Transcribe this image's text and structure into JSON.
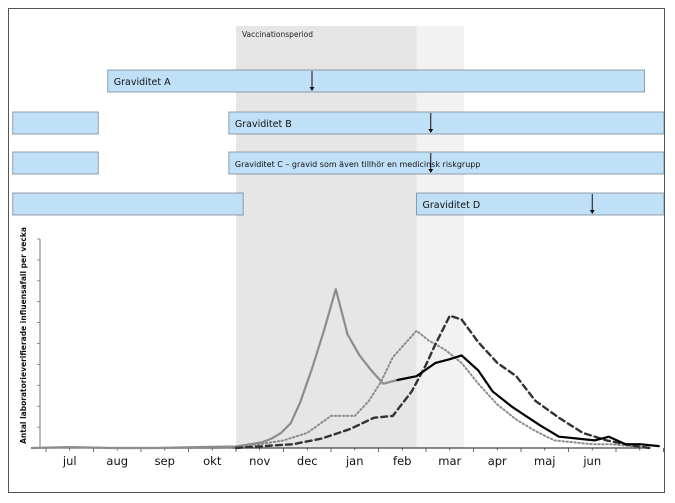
{
  "chart_data": {
    "type": "line",
    "ylabel": "Antal laboratorieverifierade influensafall per vecka",
    "xlabel": "",
    "title": "",
    "months": [
      "jul",
      "aug",
      "sep",
      "okt",
      "nov",
      "dec",
      "jan",
      "feb",
      "mar",
      "apr",
      "maj",
      "jun"
    ],
    "ylim": [
      0,
      100
    ],
    "grid": false,
    "shaded_periods": [
      {
        "label": "Vaccinationsperiod",
        "start_month": 4.0,
        "end_month": 7.8
      },
      {
        "label": "",
        "start_month": 7.8,
        "end_month": 8.8
      }
    ],
    "pregnancies": [
      {
        "label": "Graviditet A",
        "segments": [
          [
            1.3,
            12.6
          ]
        ],
        "marker_month": 5.6
      },
      {
        "label": "Graviditet B",
        "segments": [
          [
            -0.7,
            1.1
          ],
          [
            3.85,
            13.2
          ]
        ],
        "marker_month": 8.1
      },
      {
        "label": "Graviditet C – gravid som även tillhör en medicinsk riskgrupp",
        "segments": [
          [
            -0.7,
            1.1
          ],
          [
            3.85,
            13.2
          ]
        ],
        "marker_month": 8.1
      },
      {
        "label": "Graviditet D",
        "segments": [
          [
            -0.7,
            4.15
          ],
          [
            7.8,
            13.2
          ]
        ],
        "marker_month": 11.5
      }
    ],
    "series": [
      {
        "style": "solid-gray",
        "color": "#8c8c8c",
        "x": [
          -0.3,
          0.5,
          1.4,
          2.3,
          3.2,
          4.0,
          4.3,
          4.55,
          4.75,
          4.95,
          5.15,
          5.35,
          5.6,
          5.85,
          6.1,
          6.35,
          6.6,
          6.85,
          7.1,
          7.4
        ],
        "y": [
          0,
          0.5,
          0,
          0,
          0.5,
          0.8,
          2,
          3,
          5,
          8,
          13,
          24,
          42,
          62,
          84,
          60,
          49,
          41,
          34,
          36
        ]
      },
      {
        "style": "dotted-gray",
        "color": "#8c8c8c",
        "x": [
          1.6,
          2.6,
          3.6,
          4.0,
          4.5,
          5.0,
          5.5,
          6.0,
          6.5,
          6.8,
          7.05,
          7.3,
          7.55,
          7.8,
          8.05,
          8.4,
          8.75,
          9.1,
          9.5,
          9.9,
          10.3,
          10.7,
          11.1,
          11.5,
          11.9,
          12.3,
          12.7
        ],
        "y": [
          0,
          0,
          0,
          0.5,
          2,
          4,
          8,
          17,
          17,
          25,
          35,
          48,
          55,
          62,
          57,
          52,
          45,
          34,
          23,
          15,
          9,
          4,
          3,
          2,
          2,
          1,
          0
        ]
      },
      {
        "style": "dashed-dark",
        "color": "#333333",
        "x": [
          4.0,
          4.6,
          5.2,
          5.8,
          6.4,
          6.9,
          7.3,
          7.7,
          8.0,
          8.2,
          8.5,
          8.75,
          9.1,
          9.5,
          9.9,
          10.3,
          10.8,
          11.3,
          11.8,
          12.3,
          12.7
        ],
        "y": [
          0,
          1,
          2,
          5,
          10,
          16,
          17,
          30,
          44,
          55,
          70,
          68,
          56,
          45,
          38,
          25,
          16,
          8,
          4,
          1.5,
          0
        ]
      },
      {
        "style": "solid-black",
        "color": "#000000",
        "x": [
          7.4,
          7.8,
          8.2,
          8.5,
          8.75,
          9.1,
          9.4,
          9.8,
          10.1,
          10.4,
          10.8,
          11.2,
          11.55,
          11.85,
          12.2,
          12.5,
          12.9
        ],
        "y": [
          36,
          38,
          45,
          47,
          49,
          41,
          30,
          22,
          17,
          12,
          6,
          5,
          4,
          6,
          2,
          2,
          1
        ]
      }
    ]
  }
}
